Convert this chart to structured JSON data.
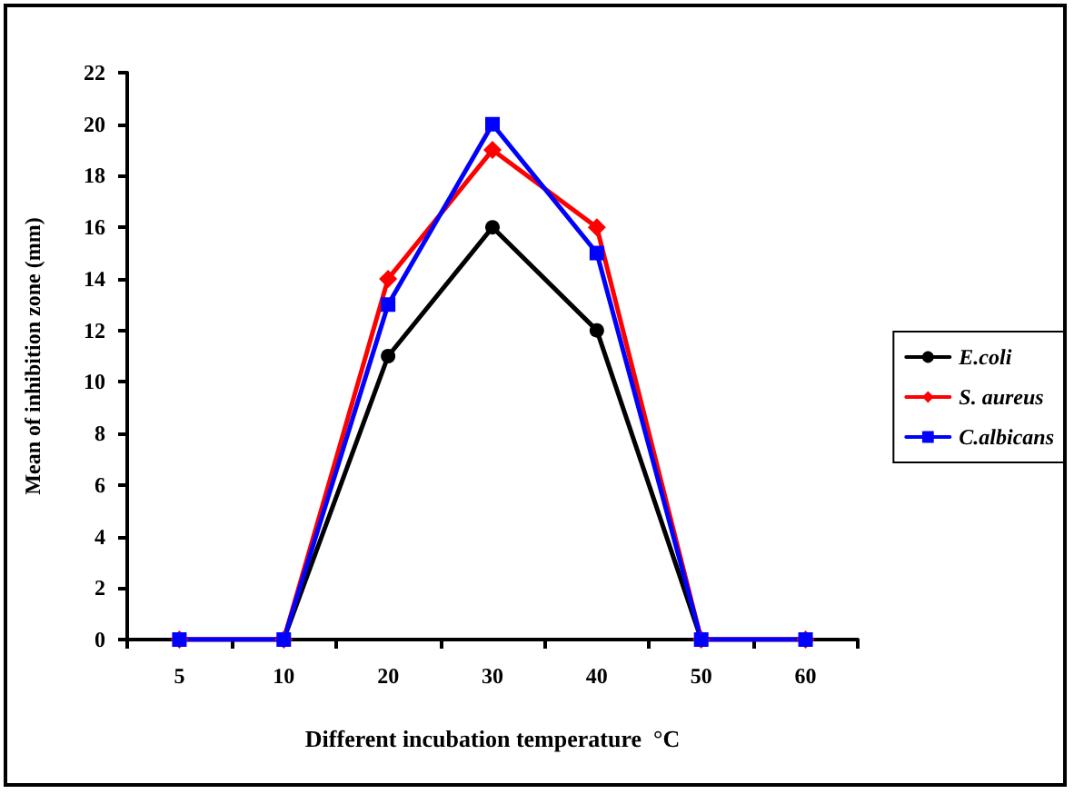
{
  "chart_data": {
    "type": "line",
    "xlabel": "Different incubation temperature  °C",
    "ylabel": "Mean of inhibition zone (mm)",
    "categories": [
      "5",
      "10",
      "20",
      "30",
      "40",
      "50",
      "60"
    ],
    "ylim": [
      0,
      22
    ],
    "yticks": [
      0,
      2,
      4,
      6,
      8,
      10,
      12,
      14,
      16,
      18,
      20,
      22
    ],
    "grid": false,
    "legend": "right",
    "line_style": "solid",
    "series": [
      {
        "name": "E.coli",
        "color": "#000000",
        "marker": "circle",
        "values": [
          0,
          0,
          11,
          16,
          12,
          0,
          0
        ]
      },
      {
        "name": "S. aureus",
        "color": "#ff0000",
        "marker": "diamond",
        "values": [
          0,
          0,
          14,
          19,
          16,
          0,
          0
        ]
      },
      {
        "name": "C.albicans",
        "color": "#0000ff",
        "marker": "square",
        "values": [
          0,
          0,
          13,
          20,
          15,
          0,
          0
        ]
      }
    ]
  }
}
